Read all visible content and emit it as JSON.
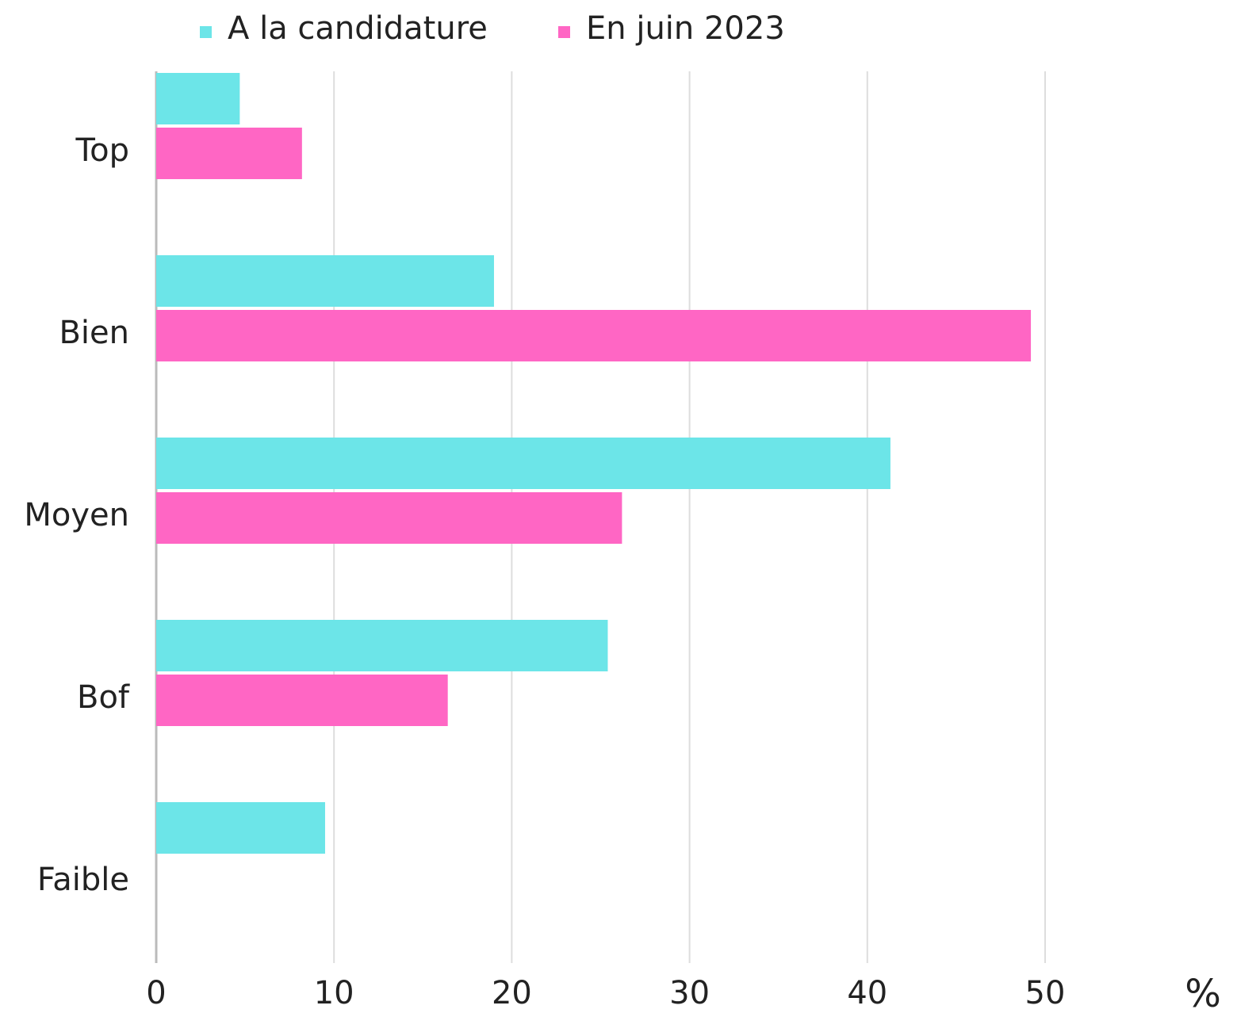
{
  "chart_data": {
    "type": "bar",
    "orientation": "horizontal",
    "categories": [
      "Top",
      "Bien",
      "Moyen",
      "Bof",
      "Faible"
    ],
    "series": [
      {
        "name": "A la candidature",
        "color": "#6ce5e8",
        "values": [
          4.7,
          19.0,
          41.3,
          25.4,
          9.5
        ]
      },
      {
        "name": "En juin 2023",
        "color": "#ff66c4",
        "values": [
          8.2,
          49.2,
          26.2,
          16.4,
          0
        ]
      }
    ],
    "xlim": [
      0,
      50
    ],
    "xticks": [
      0,
      10,
      20,
      30,
      40,
      50
    ],
    "x_label": "%",
    "grid": true,
    "legend": "top"
  }
}
